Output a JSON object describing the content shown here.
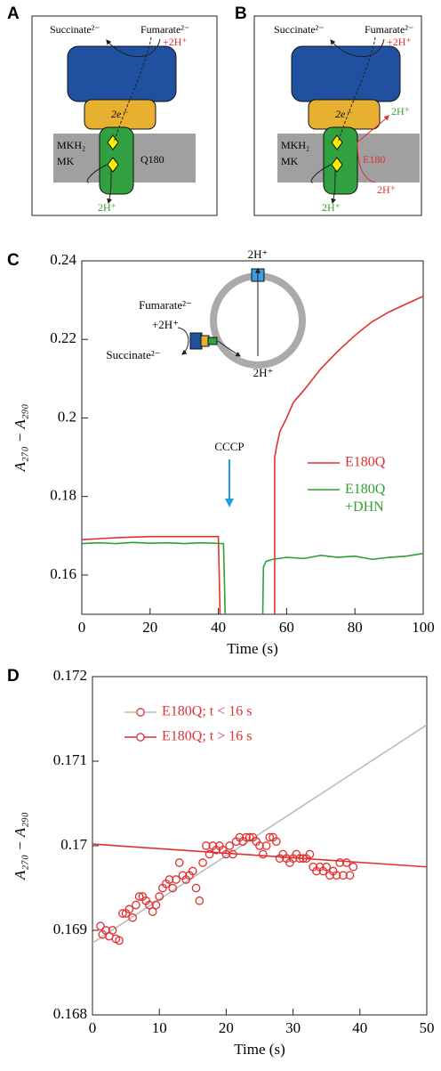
{
  "diagrams": [
    {
      "panel": "A",
      "labels": [
        "Succinate²⁻",
        "Fumarate²⁻",
        "+2H⁺",
        "2e⁻",
        "MKH₂",
        "MK",
        "Q180",
        "2H⁺"
      ]
    },
    {
      "panel": "B",
      "labels": [
        "Succinate²⁻",
        "Fumarate²⁻",
        "+2H⁺",
        "2e⁻",
        "MKH₂",
        "MK",
        "E180",
        "2H⁺",
        "2H⁺",
        "2H⁺"
      ]
    }
  ],
  "chart_data": [
    {
      "type": "line",
      "panel": "C",
      "xlabel": "Time (s)",
      "ylabel": "A₂₇₀ − A₂₉₀",
      "xlim": [
        0,
        100
      ],
      "ylim": [
        0.15,
        0.24
      ],
      "xticks": [
        0,
        20,
        40,
        60,
        80,
        100
      ],
      "yticks": [
        0.16,
        0.18,
        0.2,
        0.22,
        0.24
      ],
      "annotation": "CCCP",
      "inset_labels": [
        "2H⁺",
        "Fumarate²⁻",
        "+2H⁺",
        "Succinate²⁻",
        "2H⁺"
      ],
      "series": [
        {
          "name": "E180Q",
          "color": "#e03030",
          "x": [
            0,
            10,
            20,
            30,
            40,
            40.5,
            48,
            56.5,
            56.5,
            57,
            58,
            60,
            62,
            65,
            70,
            75,
            80,
            85,
            90,
            95,
            100
          ],
          "values": [
            0.169,
            0.1695,
            0.1698,
            0.1698,
            0.1698,
            0.15,
            null,
            0.15,
            0.19,
            0.1925,
            0.1965,
            0.2,
            0.204,
            0.207,
            0.2125,
            0.217,
            0.221,
            0.2245,
            0.227,
            0.229,
            0.231
          ]
        },
        {
          "name": "E180Q\n+DHN",
          "color": "#30a030",
          "x": [
            0,
            5,
            10,
            15,
            20,
            25,
            30,
            35,
            41.5,
            42,
            47,
            53,
            53.2,
            54,
            56,
            60,
            65,
            70,
            75,
            80,
            85,
            90,
            95,
            100
          ],
          "values": [
            0.168,
            0.1682,
            0.168,
            0.1683,
            0.1681,
            0.1682,
            0.168,
            0.1682,
            0.168,
            0.15,
            null,
            0.15,
            0.162,
            0.1635,
            0.164,
            0.1645,
            0.1642,
            0.165,
            0.1645,
            0.1648,
            0.164,
            0.1645,
            0.1648,
            0.1655
          ]
        }
      ]
    },
    {
      "type": "scatter",
      "panel": "D",
      "xlabel": "Time (s)",
      "ylabel": "A₂₇₀ − A₂₉₀",
      "xlim": [
        0,
        50
      ],
      "ylim": [
        0.168,
        0.172
      ],
      "xticks": [
        0,
        10,
        20,
        30,
        40,
        50
      ],
      "yticks": [
        0.168,
        0.169,
        0.17,
        0.171,
        0.172
      ],
      "series": [
        {
          "name": "E180Q; t < 16 s",
          "color": "#e03030",
          "line_color": "#bbbbbb",
          "x": [
            1.2,
            1.5,
            2,
            2.5,
            3,
            3.5,
            4,
            4.5,
            5,
            5.5,
            6,
            6.5,
            7,
            7.5,
            8,
            8.5,
            9,
            9.5,
            10,
            10.5,
            11,
            11.5,
            12,
            12.5,
            13,
            13.5,
            14,
            14.5,
            15,
            15.5
          ],
          "values": [
            0.16905,
            0.16895,
            0.169,
            0.16893,
            0.169,
            0.1689,
            0.16888,
            0.1692,
            0.1692,
            0.16925,
            0.16915,
            0.1693,
            0.1694,
            0.1694,
            0.16935,
            0.1693,
            0.16922,
            0.1693,
            0.1694,
            0.1695,
            0.16955,
            0.1696,
            0.1695,
            0.1696,
            0.1698,
            0.16965,
            0.1696,
            0.16965,
            0.1697,
            0.1695
          ],
          "fit_x": [
            0,
            50
          ],
          "fit_values": [
            0.16885,
            0.17143
          ]
        },
        {
          "name": "E180Q; t > 16 s",
          "color": "#e03030",
          "line_color": "#e03030",
          "x": [
            16,
            16.5,
            17,
            17.5,
            18,
            18.5,
            19,
            19.5,
            20,
            20.5,
            21,
            21.5,
            22,
            22.5,
            23,
            23.5,
            24,
            24.5,
            25,
            25.5,
            26,
            26.5,
            27,
            27.5,
            28,
            28.5,
            29,
            29.5,
            30,
            30.5,
            31,
            31.5,
            32,
            32.5,
            33,
            33.5,
            34,
            34.5,
            35,
            35.5,
            36,
            36.5,
            37,
            37.5,
            38,
            38.5,
            39
          ],
          "values": [
            0.16935,
            0.1698,
            0.17,
            0.1699,
            0.17,
            0.16995,
            0.17,
            0.16995,
            0.1699,
            0.17,
            0.1699,
            0.17005,
            0.1701,
            0.17005,
            0.1701,
            0.1701,
            0.1701,
            0.17005,
            0.17,
            0.1699,
            0.17,
            0.1701,
            0.1701,
            0.17005,
            0.16985,
            0.1699,
            0.16985,
            0.1698,
            0.16985,
            0.1699,
            0.16985,
            0.16985,
            0.16985,
            0.1699,
            0.16975,
            0.1697,
            0.16975,
            0.1697,
            0.16975,
            0.16965,
            0.1697,
            0.16965,
            0.1698,
            0.16965,
            0.1698,
            0.16965,
            0.16975
          ],
          "fit_x": [
            0,
            50
          ],
          "fit_values": [
            0.17002,
            0.16975
          ]
        }
      ]
    }
  ]
}
